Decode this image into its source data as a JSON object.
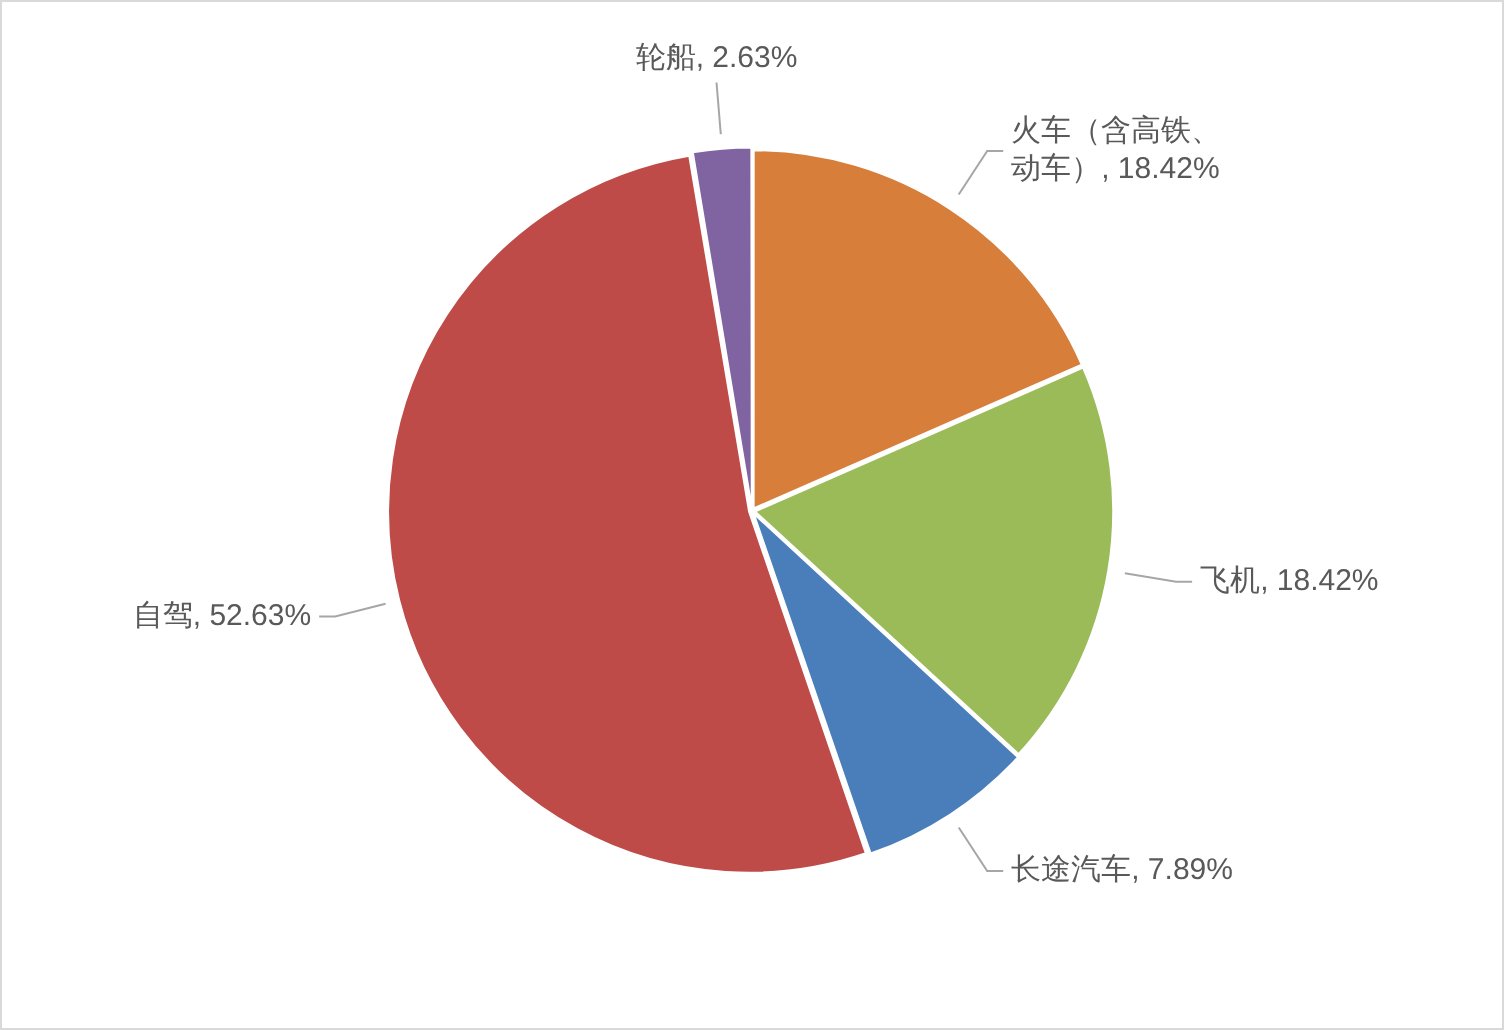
{
  "chart_data": {
    "type": "pie",
    "categories": [
      "火车（含高铁、动车）",
      "飞机",
      "长途汽车",
      "自驾",
      "轮船"
    ],
    "values": [
      18.42,
      18.42,
      7.89,
      52.63,
      2.63
    ],
    "colors": [
      "#d67e3a",
      "#9bbb59",
      "#4a7ebb",
      "#be4b48",
      "#8064a2"
    ],
    "value_labels": [
      "18.42%",
      "18.42%",
      "7.89%",
      "52.63%",
      "2.63%"
    ],
    "legend": false
  }
}
